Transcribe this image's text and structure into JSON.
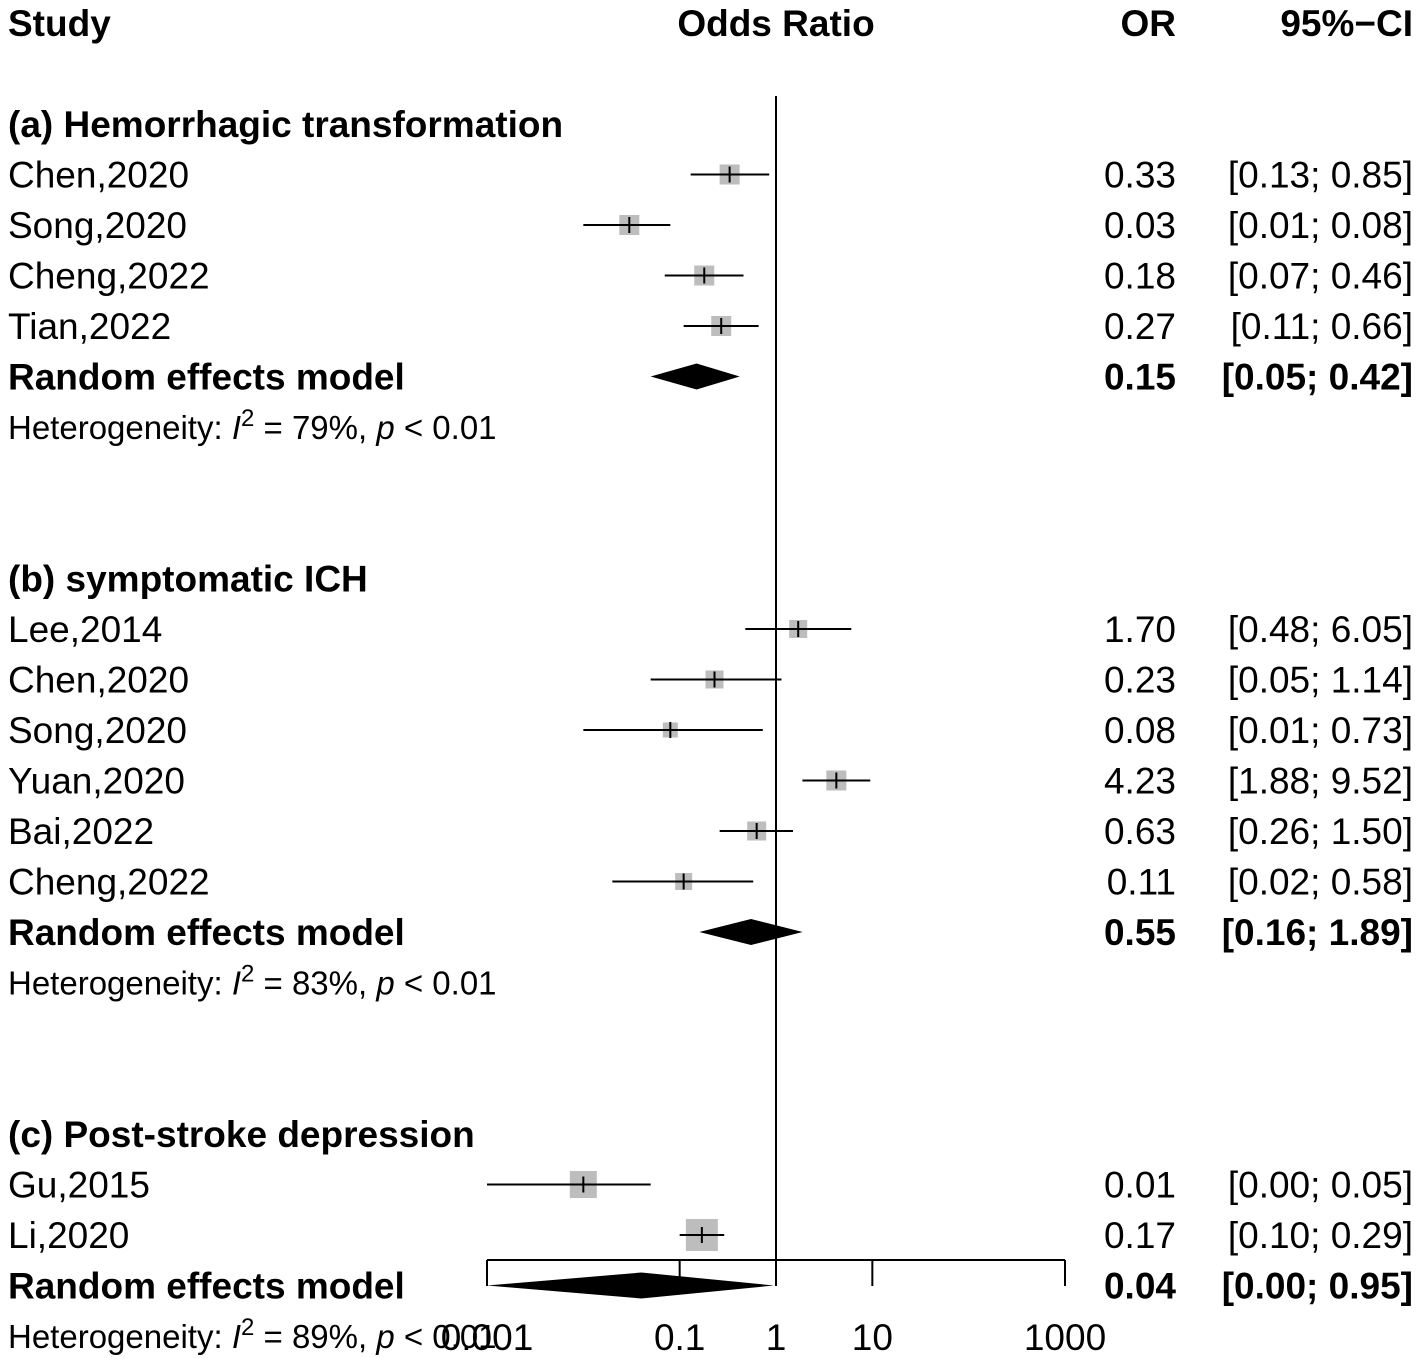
{
  "headers": {
    "study": "Study",
    "odds_ratio": "Odds Ratio",
    "or": "OR",
    "ci": "95%−CI"
  },
  "chart_data": {
    "type": "forest",
    "title": "",
    "xlabel": "Odds Ratio",
    "xscale": "log",
    "xlim": [
      0.001,
      1000
    ],
    "reference_line": 1,
    "ticks": [
      {
        "value": 0.001,
        "label": "0.001"
      },
      {
        "value": 0.1,
        "label": "0.1"
      },
      {
        "value": 1,
        "label": "1"
      },
      {
        "value": 10,
        "label": "10"
      },
      {
        "value": 1000,
        "label": "1000"
      }
    ],
    "groups": [
      {
        "label": "(a) Hemorrhagic transformation",
        "studies": [
          {
            "name": "Chen,2020",
            "or": 0.33,
            "lower": 0.13,
            "upper": 0.85,
            "or_text": "0.33",
            "ci_text": "[0.13; 0.85]",
            "weight": 1.0
          },
          {
            "name": "Song,2020",
            "or": 0.03,
            "lower": 0.01,
            "upper": 0.08,
            "or_text": "0.03",
            "ci_text": "[0.01; 0.08]",
            "weight": 1.0
          },
          {
            "name": "Cheng,2022",
            "or": 0.18,
            "lower": 0.07,
            "upper": 0.46,
            "or_text": "0.18",
            "ci_text": "[0.07; 0.46]",
            "weight": 1.0
          },
          {
            "name": "Tian,2022",
            "or": 0.27,
            "lower": 0.11,
            "upper": 0.66,
            "or_text": "0.27",
            "ci_text": "[0.11; 0.66]",
            "weight": 1.0
          }
        ],
        "model": {
          "label": "Random effects model",
          "or": 0.15,
          "lower": 0.05,
          "upper": 0.42,
          "or_text": "0.15",
          "ci_text": "[0.05; 0.42]"
        },
        "heterogeneity": {
          "prefix": "Heterogeneity: ",
          "i": "I",
          "sup": "2",
          "mid": " = 79%, ",
          "p": "p",
          "tail": " < 0.01"
        }
      },
      {
        "label": "(b) symptomatic ICH",
        "studies": [
          {
            "name": "Lee,2014",
            "or": 1.7,
            "lower": 0.48,
            "upper": 6.05,
            "or_text": "1.70",
            "ci_text": "[0.48; 6.05]",
            "weight": 0.9
          },
          {
            "name": "Chen,2020",
            "or": 0.23,
            "lower": 0.05,
            "upper": 1.14,
            "or_text": "0.23",
            "ci_text": "[0.05; 1.14]",
            "weight": 0.9
          },
          {
            "name": "Song,2020",
            "or": 0.08,
            "lower": 0.01,
            "upper": 0.73,
            "or_text": "0.08",
            "ci_text": "[0.01; 0.73]",
            "weight": 0.75
          },
          {
            "name": "Yuan,2020",
            "or": 4.23,
            "lower": 1.88,
            "upper": 9.52,
            "or_text": "4.23",
            "ci_text": "[1.88; 9.52]",
            "weight": 1.0
          },
          {
            "name": "Bai,2022",
            "or": 0.63,
            "lower": 0.26,
            "upper": 1.5,
            "or_text": "0.63",
            "ci_text": "[0.26; 1.50]",
            "weight": 0.95
          },
          {
            "name": "Cheng,2022",
            "or": 0.11,
            "lower": 0.02,
            "upper": 0.58,
            "or_text": "0.11",
            "ci_text": "[0.02; 0.58]",
            "weight": 0.85
          }
        ],
        "model": {
          "label": "Random effects model",
          "or": 0.55,
          "lower": 0.16,
          "upper": 1.89,
          "or_text": "0.55",
          "ci_text": "[0.16; 1.89]"
        },
        "heterogeneity": {
          "prefix": "Heterogeneity: ",
          "i": "I",
          "sup": "2",
          "mid": " = 83%, ",
          "p": "p",
          "tail": " < 0.01"
        }
      },
      {
        "label": "(c) Post-stroke depression",
        "studies": [
          {
            "name": "Gu,2015",
            "or": 0.01,
            "lower": 0.0,
            "upper": 0.05,
            "or_text": "0.01",
            "ci_text": "[0.00; 0.05]",
            "weight": 1.35
          },
          {
            "name": "Li,2020",
            "or": 0.17,
            "lower": 0.1,
            "upper": 0.29,
            "or_text": "0.17",
            "ci_text": "[0.10; 0.29]",
            "weight": 1.6
          }
        ],
        "model": {
          "label": "Random effects model",
          "or": 0.04,
          "lower": 0.0,
          "upper": 0.95,
          "or_text": "0.04",
          "ci_text": "[0.00; 0.95]"
        },
        "heterogeneity": {
          "prefix": "Heterogeneity: ",
          "i": "I",
          "sup": "2",
          "mid": " = 89%, ",
          "p": "p",
          "tail": " < 0.01"
        }
      }
    ]
  }
}
